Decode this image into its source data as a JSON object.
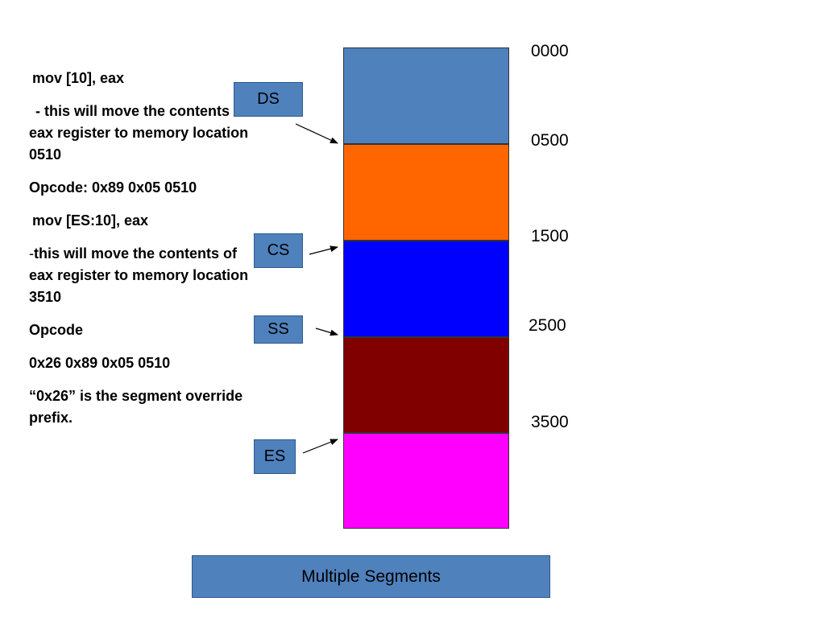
{
  "notes": {
    "line1": "mov [10], eax",
    "line2": "- this will move the contents of eax register to memory location 0510",
    "line3": "Opcode: 0x89 0x05 0510",
    "line4": "mov [ES:10], eax",
    "line5_dash": "-",
    "line5": "this will move the contents of eax register to memory location 3510",
    "line6": "Opcode",
    "line7": "0x26 0x89 0x05 0510",
    "line8": "“0x26” is the segment override prefix."
  },
  "segments": {
    "ds": "DS",
    "cs": "CS",
    "ss": "SS",
    "es": "ES"
  },
  "addresses": {
    "a0": "0000",
    "a1": "0500",
    "a2": "1500",
    "a3": "2500",
    "a4": "3500"
  },
  "memory_colors": [
    "#4f81bd",
    "#ff6600",
    "#0000ff",
    "#800000",
    "#ff00ff"
  ],
  "caption": "Multiple Segments"
}
